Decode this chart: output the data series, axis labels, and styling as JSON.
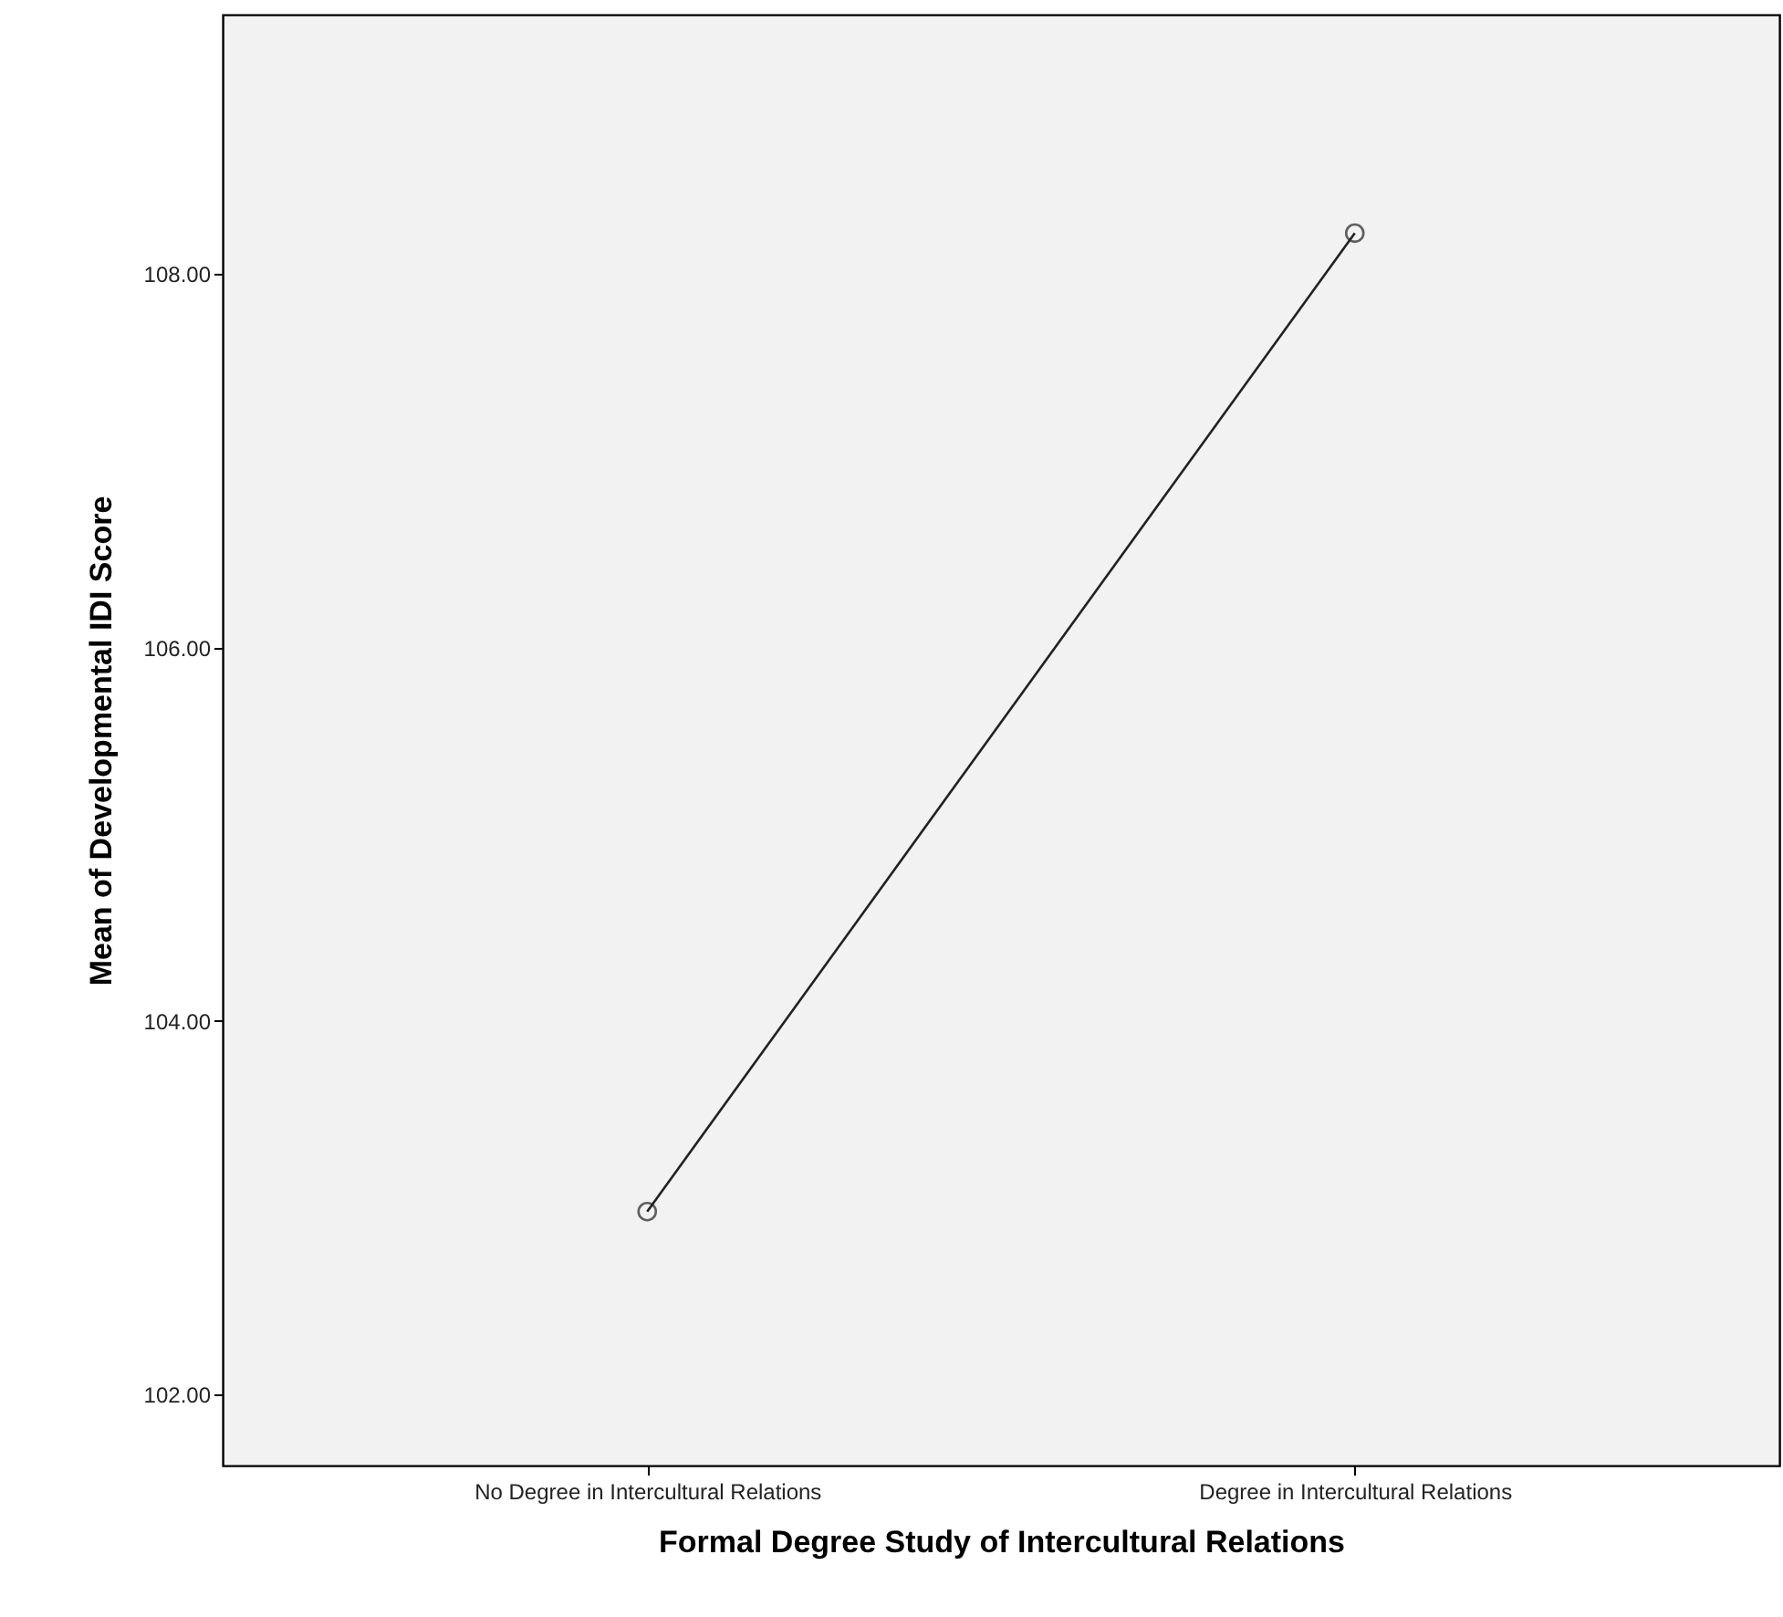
{
  "chart_data": {
    "type": "line",
    "xlabel": "Formal Degree Study of Intercultural Relations",
    "ylabel": "Mean of Developmental IDI Score",
    "categories": [
      "No Degree in Intercultural Relations",
      "Degree in Intercultural Relations"
    ],
    "series": [
      {
        "color": "#222222",
        "values": [
          102.98,
          108.22
        ]
      }
    ],
    "ylim": [
      101.62,
      109.39
    ],
    "yticks": [
      {
        "value": 102,
        "label": "102.00"
      },
      {
        "value": 104,
        "label": "104.00"
      },
      {
        "value": 106,
        "label": "106.00"
      },
      {
        "value": 108,
        "label": "108.00"
      }
    ],
    "grid": false,
    "marker": "circle",
    "line_style": "solid"
  }
}
